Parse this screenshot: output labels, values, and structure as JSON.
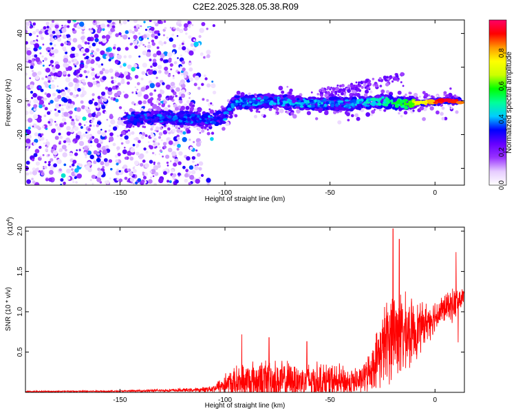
{
  "title": "C2E2.2025.328.05.38.R09",
  "chart_data": [
    {
      "type": "heatmap",
      "name": "spectrogram",
      "xlabel": "Height of straight line (km)",
      "ylabel": "Frequency (Hz)",
      "xlim": [
        -195,
        14
      ],
      "ylim": [
        -50,
        48
      ],
      "xticks": [
        -150,
        -100,
        -50,
        0
      ],
      "xtick_labels": [
        "-150",
        "-100",
        "-50",
        "0"
      ],
      "yticks": [
        -40,
        -20,
        0,
        20,
        40
      ],
      "ytick_labels": [
        "-40",
        "-20",
        "0",
        "20",
        "40"
      ],
      "colorbar": {
        "label": "Normalized spectral amplitude",
        "range": [
          0,
          1
        ],
        "ticks": [
          0.0,
          0.2,
          0.4,
          0.6,
          0.8
        ],
        "tick_labels": [
          "0.0",
          "0.2",
          "0.4",
          "0.6",
          "0.8"
        ],
        "colors": [
          "#ffffff",
          "#e6ccff",
          "#9933ff",
          "#6600ff",
          "#0000ff",
          "#00ccff",
          "#00ff99",
          "#00ff00",
          "#ccff00",
          "#ffff00",
          "#ff9900",
          "#ff0000",
          "#ff0066"
        ]
      },
      "ridge": {
        "x": [
          -148,
          -130,
          -115,
          -105,
          -100,
          -95,
          -80,
          -60,
          -40,
          -25,
          -15,
          -5,
          5,
          12
        ],
        "y": [
          -11,
          -10,
          -10.5,
          -11,
          -9,
          -1,
          0,
          -1.5,
          -2,
          0,
          -2,
          -1,
          0,
          0
        ],
        "amplitude": [
          0.25,
          0.28,
          0.28,
          0.3,
          0.3,
          0.32,
          0.33,
          0.33,
          0.35,
          0.4,
          0.5,
          0.7,
          0.9,
          0.85
        ]
      },
      "noise_region": {
        "x_range": [
          -195,
          -110
        ],
        "y_range": [
          -50,
          48
        ],
        "amplitude": 0.12
      }
    },
    {
      "type": "line",
      "name": "snr",
      "color": "#ff0000",
      "xlabel": "Height of straight line (km)",
      "ylabel": "SNR (10 * v/v)",
      "y_multiplier_label": "(x10",
      "y_multiplier_exp": "4",
      "xlim": [
        -195,
        14
      ],
      "ylim": [
        0,
        2.05
      ],
      "xticks": [
        -150,
        -100,
        -50,
        0
      ],
      "xtick_labels": [
        "-150",
        "-100",
        "-50",
        "0"
      ],
      "yticks": [
        0.5,
        1.0,
        1.5,
        2.0
      ],
      "ytick_labels": [
        "0.5",
        "1.0",
        "1.5",
        "2.0"
      ],
      "envelope": {
        "x": [
          -195,
          -150,
          -112,
          -105,
          -100,
          -90,
          -80,
          -70,
          -60,
          -50,
          -40,
          -35,
          -30,
          -25,
          -20,
          -15,
          -10,
          -5,
          0,
          5,
          10,
          14
        ],
        "base": [
          0.01,
          0.015,
          0.03,
          0.05,
          0.1,
          0.13,
          0.14,
          0.14,
          0.14,
          0.13,
          0.12,
          0.15,
          0.3,
          0.55,
          0.75,
          0.7,
          0.75,
          0.85,
          0.95,
          1.05,
          1.1,
          1.2
        ],
        "amp": [
          0.01,
          0.01,
          0.03,
          0.06,
          0.18,
          0.3,
          0.32,
          0.28,
          0.28,
          0.28,
          0.22,
          0.2,
          0.3,
          0.55,
          0.7,
          0.6,
          0.45,
          0.3,
          0.25,
          0.2,
          0.25,
          0.1
        ]
      },
      "peaks": [
        {
          "x": -92,
          "y": 0.72
        },
        {
          "x": -79,
          "y": 0.68
        },
        {
          "x": -61,
          "y": 0.63
        },
        {
          "x": -20,
          "y": 2.03
        },
        {
          "x": -17,
          "y": 1.9
        },
        {
          "x": 10,
          "y": 1.74
        },
        {
          "x": 11,
          "y": 0.62
        }
      ]
    }
  ]
}
